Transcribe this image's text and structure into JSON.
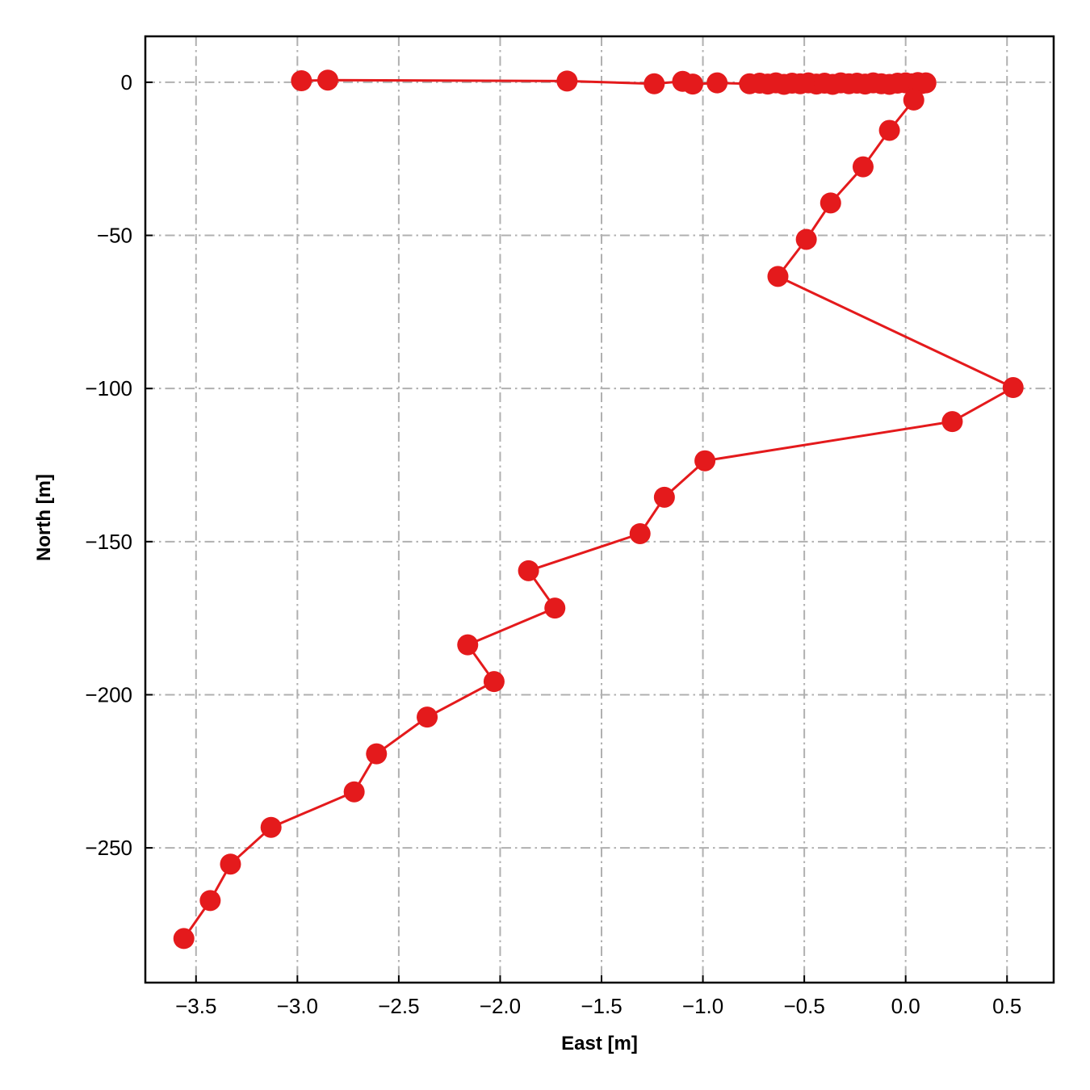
{
  "chart_data": {
    "type": "line",
    "title": "",
    "xlabel": "East [m]",
    "ylabel": "North [m]",
    "xlim": [
      -3.75,
      0.73
    ],
    "ylim": [
      -294,
      15
    ],
    "xticks": [
      -3.5,
      -3.0,
      -2.5,
      -2.0,
      -1.5,
      -1.0,
      -0.5,
      0.0,
      0.5
    ],
    "xtick_labels": [
      "−3.5",
      "−3.0",
      "−2.5",
      "−2.0",
      "−1.5",
      "−1.0",
      "−0.5",
      "0.0",
      "0.5"
    ],
    "yticks": [
      0,
      -50,
      -100,
      -150,
      -200,
      -250
    ],
    "ytick_labels": [
      "0",
      "−50",
      "−100",
      "−150",
      "−200",
      "−250"
    ],
    "grid": true,
    "grid_style": "dash-dot",
    "legend": false,
    "color": "#e41a1c",
    "marker": "circle",
    "series": [
      {
        "points": [
          {
            "x": -2.98,
            "y": 0.5
          },
          {
            "x": -2.85,
            "y": 0.7
          },
          {
            "x": -1.67,
            "y": 0.4
          },
          {
            "x": -1.24,
            "y": -0.5
          },
          {
            "x": -1.1,
            "y": 0.3
          },
          {
            "x": -1.05,
            "y": -0.6
          },
          {
            "x": -0.93,
            "y": -0.2
          },
          {
            "x": -0.77,
            "y": -0.5
          },
          {
            "x": -0.72,
            "y": -0.3
          },
          {
            "x": -0.68,
            "y": -0.6
          },
          {
            "x": -0.64,
            "y": -0.2
          },
          {
            "x": -0.6,
            "y": -0.7
          },
          {
            "x": -0.56,
            "y": -0.3
          },
          {
            "x": -0.52,
            "y": -0.5
          },
          {
            "x": -0.48,
            "y": -0.2
          },
          {
            "x": -0.44,
            "y": -0.6
          },
          {
            "x": -0.4,
            "y": -0.3
          },
          {
            "x": -0.36,
            "y": -0.7
          },
          {
            "x": -0.32,
            "y": -0.2
          },
          {
            "x": -0.28,
            "y": -0.5
          },
          {
            "x": -0.24,
            "y": -0.3
          },
          {
            "x": -0.2,
            "y": -0.6
          },
          {
            "x": -0.16,
            "y": -0.2
          },
          {
            "x": -0.12,
            "y": -0.5
          },
          {
            "x": -0.08,
            "y": -0.7
          },
          {
            "x": -0.04,
            "y": -0.3
          },
          {
            "x": 0.0,
            "y": -0.2
          },
          {
            "x": 0.03,
            "y": -0.5
          },
          {
            "x": 0.06,
            "y": -0.1
          },
          {
            "x": 0.08,
            "y": -0.4
          },
          {
            "x": 0.1,
            "y": -0.2
          },
          {
            "x": 0.04,
            "y": -5.8
          },
          {
            "x": -0.08,
            "y": -15.7
          },
          {
            "x": -0.21,
            "y": -27.6
          },
          {
            "x": -0.37,
            "y": -39.4
          },
          {
            "x": -0.49,
            "y": -51.3
          },
          {
            "x": -0.63,
            "y": -63.4
          },
          {
            "x": 0.53,
            "y": -99.7
          },
          {
            "x": 0.23,
            "y": -110.8
          },
          {
            "x": -0.99,
            "y": -123.6
          },
          {
            "x": -1.19,
            "y": -135.5
          },
          {
            "x": -1.31,
            "y": -147.4
          },
          {
            "x": -1.86,
            "y": -159.5
          },
          {
            "x": -1.73,
            "y": -171.7
          },
          {
            "x": -2.16,
            "y": -183.7
          },
          {
            "x": -2.03,
            "y": -195.7
          },
          {
            "x": -2.36,
            "y": -207.3
          },
          {
            "x": -2.61,
            "y": -219.3
          },
          {
            "x": -2.72,
            "y": -231.7
          },
          {
            "x": -3.13,
            "y": -243.3
          },
          {
            "x": -3.33,
            "y": -255.3
          },
          {
            "x": -3.43,
            "y": -267.2
          },
          {
            "x": -3.56,
            "y": -279.6
          }
        ]
      }
    ]
  }
}
